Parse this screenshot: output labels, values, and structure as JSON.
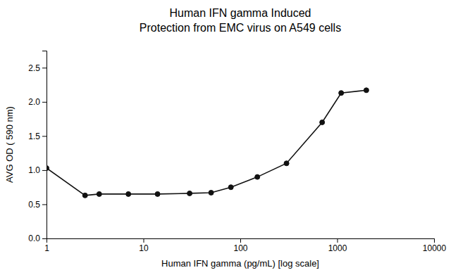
{
  "chart_data": {
    "type": "line",
    "title": "Human IFN gamma Induced\nProtection from EMC virus on A549 cells",
    "xlabel": "Human IFN gamma (pg/mL) [log scale]",
    "ylabel": "AVG OD ( 590 nm)",
    "x": [
      1,
      2.5,
      3.5,
      7,
      14,
      30,
      50,
      80,
      150,
      300,
      700,
      1100,
      2000
    ],
    "values": [
      1.03,
      0.63,
      0.65,
      0.65,
      0.65,
      0.66,
      0.67,
      0.75,
      0.9,
      1.1,
      1.7,
      2.13,
      2.17
    ],
    "log": "x",
    "xlim": [
      1,
      10000
    ],
    "ylim": [
      0.0,
      2.75
    ],
    "xticks": [
      1,
      10,
      100,
      1000,
      10000
    ],
    "yticks": [
      {
        "value": 0.0,
        "label": "0.0"
      },
      0.5,
      {
        "value": 1.0,
        "label": "1.0"
      },
      1.5,
      {
        "value": 2.0,
        "label": "2.0"
      },
      2.5
    ],
    "color": "#111111",
    "marker": "circle",
    "grid": false
  }
}
